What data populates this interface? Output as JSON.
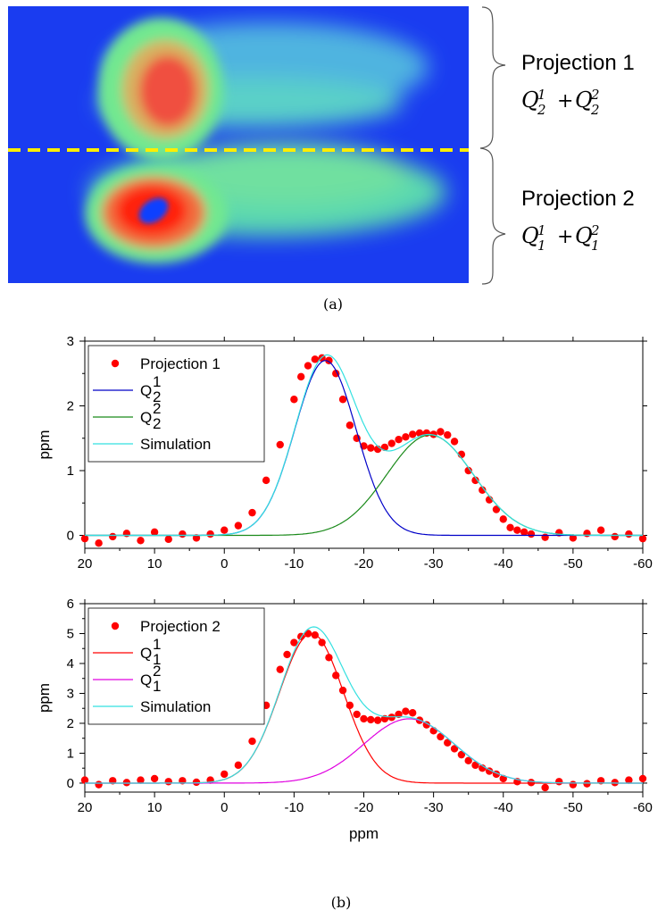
{
  "panel_a": {
    "caption": "(a)",
    "projections": [
      {
        "title": "Projection 1",
        "terms": [
          {
            "base": "Q",
            "sub": "2",
            "sup": "1"
          },
          {
            "base": "Q",
            "sub": "2",
            "sup": "2"
          }
        ],
        "op": "+"
      },
      {
        "title": "Projection 2",
        "terms": [
          {
            "base": "Q",
            "sub": "1",
            "sup": "1"
          },
          {
            "base": "Q",
            "sub": "1",
            "sup": "2"
          }
        ],
        "op": "+"
      }
    ],
    "colors": {
      "background": "#1a3cf0",
      "divider": "#ffee00"
    }
  },
  "panel_b": {
    "caption": "(b)"
  },
  "chart_data": [
    {
      "type": "line",
      "title": "",
      "xlabel": "",
      "ylabel": "ppm",
      "xlim": [
        20,
        -60
      ],
      "ylim": [
        -0.2,
        3
      ],
      "xticks": [
        20,
        10,
        0,
        -10,
        -20,
        -30,
        -40,
        -50,
        -60
      ],
      "yticks": [
        0,
        1,
        2,
        3
      ],
      "legend": {
        "position": "top-left",
        "entries": [
          {
            "label": "Projection 1",
            "marker": "dot",
            "color": "#ff0000"
          },
          {
            "label": "Q",
            "sub": "2",
            "sup": "1",
            "marker": "line",
            "color": "#0000c8"
          },
          {
            "label": "Q",
            "sub": "2",
            "sup": "2",
            "marker": "line",
            "color": "#1a8a1a"
          },
          {
            "label": "Simulation",
            "marker": "line",
            "color": "#33e0e0"
          }
        ]
      },
      "series": [
        {
          "name": "Projection 1",
          "style": "points",
          "color": "#ff0000",
          "x": [
            20,
            18,
            16,
            14,
            12,
            10,
            8,
            6,
            4,
            2,
            0,
            -2,
            -4,
            -6,
            -8,
            -10,
            -11,
            -12,
            -13,
            -14,
            -15,
            -16,
            -17,
            -18,
            -19,
            -20,
            -21,
            -22,
            -23,
            -24,
            -25,
            -26,
            -27,
            -28,
            -29,
            -30,
            -31,
            -32,
            -33,
            -34,
            -35,
            -36,
            -37,
            -38,
            -39,
            -40,
            -41,
            -42,
            -43,
            -44,
            -46,
            -48,
            -50,
            -52,
            -54,
            -56,
            -58,
            -60
          ],
          "y": [
            -0.05,
            -0.12,
            -0.02,
            0.03,
            -0.08,
            0.05,
            -0.06,
            0.02,
            -0.04,
            0.02,
            0.08,
            0.15,
            0.35,
            0.85,
            1.4,
            2.1,
            2.45,
            2.62,
            2.72,
            2.74,
            2.7,
            2.5,
            2.1,
            1.7,
            1.5,
            1.38,
            1.35,
            1.33,
            1.36,
            1.42,
            1.48,
            1.52,
            1.56,
            1.58,
            1.58,
            1.56,
            1.6,
            1.55,
            1.45,
            1.25,
            1.0,
            0.85,
            0.7,
            0.55,
            0.4,
            0.25,
            0.12,
            0.08,
            0.05,
            0.02,
            -0.03,
            0.04,
            -0.04,
            0.03,
            0.08,
            -0.02,
            0.02,
            -0.05
          ]
        },
        {
          "name": "Q",
          "sub": "2",
          "sup": "1",
          "style": "line",
          "color": "#0000c8",
          "fit": {
            "amp": 2.7,
            "center": -14.5,
            "sigma": 4.4
          }
        },
        {
          "name": "Q",
          "sub": "2",
          "sup": "2",
          "style": "line",
          "color": "#1a8a1a",
          "fit": {
            "amp": 1.55,
            "center": -29.5,
            "sigma": 6.2
          }
        },
        {
          "name": "Simulation",
          "style": "line",
          "color": "#33e0e0",
          "fit": {
            "sum_of": [
              1,
              2
            ]
          }
        }
      ]
    },
    {
      "type": "line",
      "title": "",
      "xlabel": "ppm",
      "ylabel": "ppm",
      "xlim": [
        20,
        -60
      ],
      "ylim": [
        -0.3,
        6
      ],
      "xticks": [
        20,
        10,
        0,
        -10,
        -20,
        -30,
        -40,
        -50,
        -60
      ],
      "yticks": [
        0,
        1,
        2,
        3,
        4,
        5,
        6
      ],
      "legend": {
        "position": "top-left",
        "entries": [
          {
            "label": "Projection 2",
            "marker": "dot",
            "color": "#ff0000"
          },
          {
            "label": "Q",
            "sub": "1",
            "sup": "1",
            "marker": "line",
            "color": "#ff0000"
          },
          {
            "label": "Q",
            "sub": "1",
            "sup": "2",
            "marker": "line",
            "color": "#e000e0"
          },
          {
            "label": "Simulation",
            "marker": "line",
            "color": "#33e0e0"
          }
        ]
      },
      "series": [
        {
          "name": "Projection 2",
          "style": "points",
          "color": "#ff0000",
          "x": [
            20,
            18,
            16,
            14,
            12,
            10,
            8,
            6,
            4,
            2,
            0,
            -2,
            -4,
            -6,
            -8,
            -9,
            -10,
            -11,
            -12,
            -13,
            -14,
            -15,
            -16,
            -17,
            -18,
            -19,
            -20,
            -21,
            -22,
            -23,
            -24,
            -25,
            -26,
            -27,
            -28,
            -29,
            -30,
            -31,
            -32,
            -33,
            -34,
            -35,
            -36,
            -37,
            -38,
            -39,
            -40,
            -42,
            -44,
            -46,
            -48,
            -50,
            -52,
            -54,
            -56,
            -58,
            -60
          ],
          "y": [
            0.1,
            -0.05,
            0.08,
            0.02,
            0.1,
            0.15,
            0.05,
            0.08,
            0.03,
            0.1,
            0.3,
            0.6,
            1.4,
            2.6,
            3.8,
            4.3,
            4.7,
            4.9,
            5.0,
            4.95,
            4.7,
            4.2,
            3.6,
            3.1,
            2.6,
            2.3,
            2.15,
            2.12,
            2.1,
            2.15,
            2.2,
            2.3,
            2.4,
            2.35,
            2.1,
            1.95,
            1.75,
            1.55,
            1.35,
            1.15,
            0.95,
            0.75,
            0.6,
            0.5,
            0.4,
            0.3,
            0.15,
            0.05,
            0.02,
            -0.15,
            0.05,
            -0.05,
            -0.02,
            0.08,
            0.02,
            0.1,
            0.15
          ]
        },
        {
          "name": "Q",
          "sub": "1",
          "sup": "1",
          "style": "line",
          "color": "#ff0000",
          "fit": {
            "amp": 5.0,
            "center": -12.5,
            "sigma": 4.6
          }
        },
        {
          "name": "Q",
          "sub": "1",
          "sup": "2",
          "style": "line",
          "color": "#e000e0",
          "fit": {
            "amp": 2.15,
            "center": -26.5,
            "sigma": 6.5
          }
        },
        {
          "name": "Simulation",
          "style": "line",
          "color": "#33e0e0",
          "fit": {
            "sum_of": [
              1,
              2
            ]
          }
        }
      ]
    }
  ]
}
